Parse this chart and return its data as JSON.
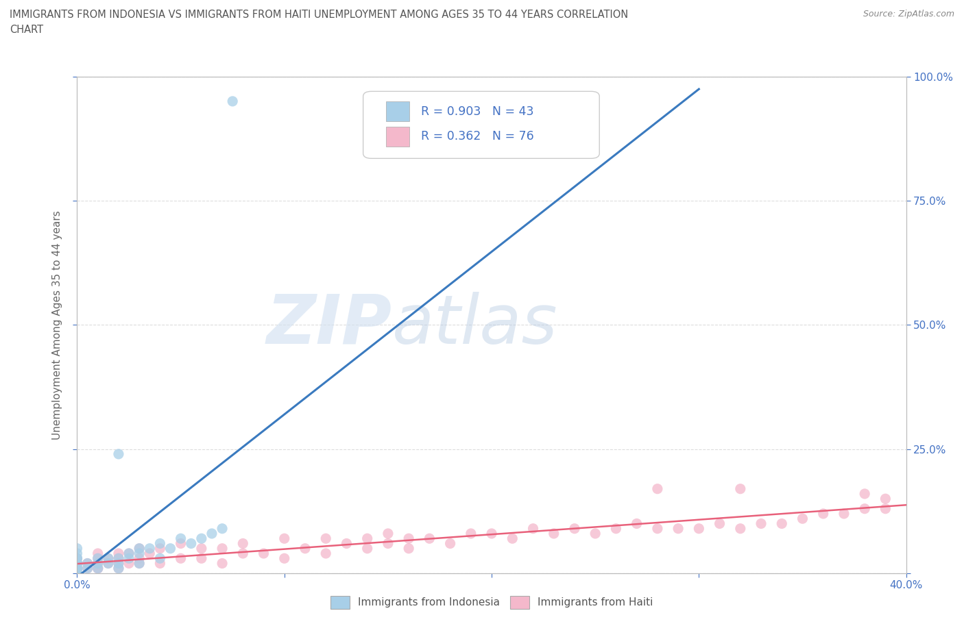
{
  "title": "IMMIGRANTS FROM INDONESIA VS IMMIGRANTS FROM HAITI UNEMPLOYMENT AMONG AGES 35 TO 44 YEARS CORRELATION\nCHART",
  "source": "Source: ZipAtlas.com",
  "ylabel": "Unemployment Among Ages 35 to 44 years",
  "xlim": [
    0.0,
    0.4
  ],
  "ylim": [
    0.0,
    1.0
  ],
  "xticks": [
    0.0,
    0.1,
    0.2,
    0.3,
    0.4
  ],
  "yticks": [
    0.0,
    0.25,
    0.5,
    0.75,
    1.0
  ],
  "xticklabels_bottom": [
    "0.0%",
    "",
    "",
    "",
    "40.0%"
  ],
  "yticklabels_right": [
    "",
    "25.0%",
    "50.0%",
    "75.0%",
    "100.0%"
  ],
  "indonesia_color": "#a8cfe8",
  "haiti_color": "#f4b8cb",
  "indonesia_line_color": "#3a7abf",
  "haiti_line_color": "#e8607a",
  "indonesia_R": 0.903,
  "indonesia_N": 43,
  "haiti_R": 0.362,
  "haiti_N": 76,
  "legend_label_indonesia": "Immigrants from Indonesia",
  "legend_label_haiti": "Immigrants from Haiti",
  "watermark_zip": "ZIP",
  "watermark_atlas": "atlas",
  "background_color": "#ffffff",
  "grid_color": "#dddddd",
  "title_color": "#555555",
  "axis_label_color": "#666666",
  "tick_label_color": "#4472c4",
  "stat_text_color": "#4472c4",
  "indonesia_scatter_x": [
    0.0,
    0.0,
    0.0,
    0.0,
    0.0,
    0.0,
    0.0,
    0.0,
    0.0,
    0.0,
    0.0,
    0.0,
    0.0,
    0.0,
    0.0,
    0.0,
    0.0,
    0.005,
    0.005,
    0.01,
    0.01,
    0.01,
    0.015,
    0.015,
    0.02,
    0.02,
    0.02,
    0.02,
    0.025,
    0.025,
    0.03,
    0.03,
    0.03,
    0.035,
    0.04,
    0.04,
    0.045,
    0.05,
    0.055,
    0.06,
    0.065,
    0.07,
    0.075
  ],
  "indonesia_scatter_y": [
    0.0,
    0.0,
    0.0,
    0.0,
    0.0,
    0.0,
    0.01,
    0.01,
    0.01,
    0.01,
    0.02,
    0.02,
    0.02,
    0.03,
    0.03,
    0.04,
    0.05,
    0.01,
    0.02,
    0.01,
    0.02,
    0.03,
    0.02,
    0.03,
    0.01,
    0.02,
    0.03,
    0.24,
    0.03,
    0.04,
    0.02,
    0.04,
    0.05,
    0.05,
    0.03,
    0.06,
    0.05,
    0.07,
    0.06,
    0.07,
    0.08,
    0.09,
    0.95
  ],
  "haiti_scatter_x": [
    0.0,
    0.0,
    0.0,
    0.0,
    0.0,
    0.0,
    0.0,
    0.005,
    0.005,
    0.01,
    0.01,
    0.01,
    0.01,
    0.01,
    0.015,
    0.015,
    0.02,
    0.02,
    0.02,
    0.02,
    0.025,
    0.025,
    0.03,
    0.03,
    0.03,
    0.035,
    0.04,
    0.04,
    0.05,
    0.05,
    0.06,
    0.06,
    0.07,
    0.07,
    0.08,
    0.08,
    0.09,
    0.1,
    0.1,
    0.11,
    0.12,
    0.12,
    0.13,
    0.14,
    0.14,
    0.15,
    0.15,
    0.16,
    0.16,
    0.17,
    0.18,
    0.19,
    0.2,
    0.21,
    0.22,
    0.23,
    0.24,
    0.25,
    0.26,
    0.27,
    0.28,
    0.29,
    0.3,
    0.31,
    0.32,
    0.33,
    0.34,
    0.35,
    0.36,
    0.37,
    0.38,
    0.38,
    0.39,
    0.39,
    0.28,
    0.32
  ],
  "haiti_scatter_y": [
    0.0,
    0.0,
    0.01,
    0.01,
    0.02,
    0.02,
    0.03,
    0.01,
    0.02,
    0.01,
    0.01,
    0.02,
    0.03,
    0.04,
    0.02,
    0.03,
    0.01,
    0.02,
    0.03,
    0.04,
    0.02,
    0.04,
    0.02,
    0.03,
    0.05,
    0.04,
    0.02,
    0.05,
    0.03,
    0.06,
    0.03,
    0.05,
    0.02,
    0.05,
    0.04,
    0.06,
    0.04,
    0.03,
    0.07,
    0.05,
    0.04,
    0.07,
    0.06,
    0.05,
    0.07,
    0.06,
    0.08,
    0.05,
    0.07,
    0.07,
    0.06,
    0.08,
    0.08,
    0.07,
    0.09,
    0.08,
    0.09,
    0.08,
    0.09,
    0.1,
    0.09,
    0.09,
    0.09,
    0.1,
    0.09,
    0.1,
    0.1,
    0.11,
    0.12,
    0.12,
    0.13,
    0.16,
    0.13,
    0.15,
    0.17,
    0.17
  ]
}
